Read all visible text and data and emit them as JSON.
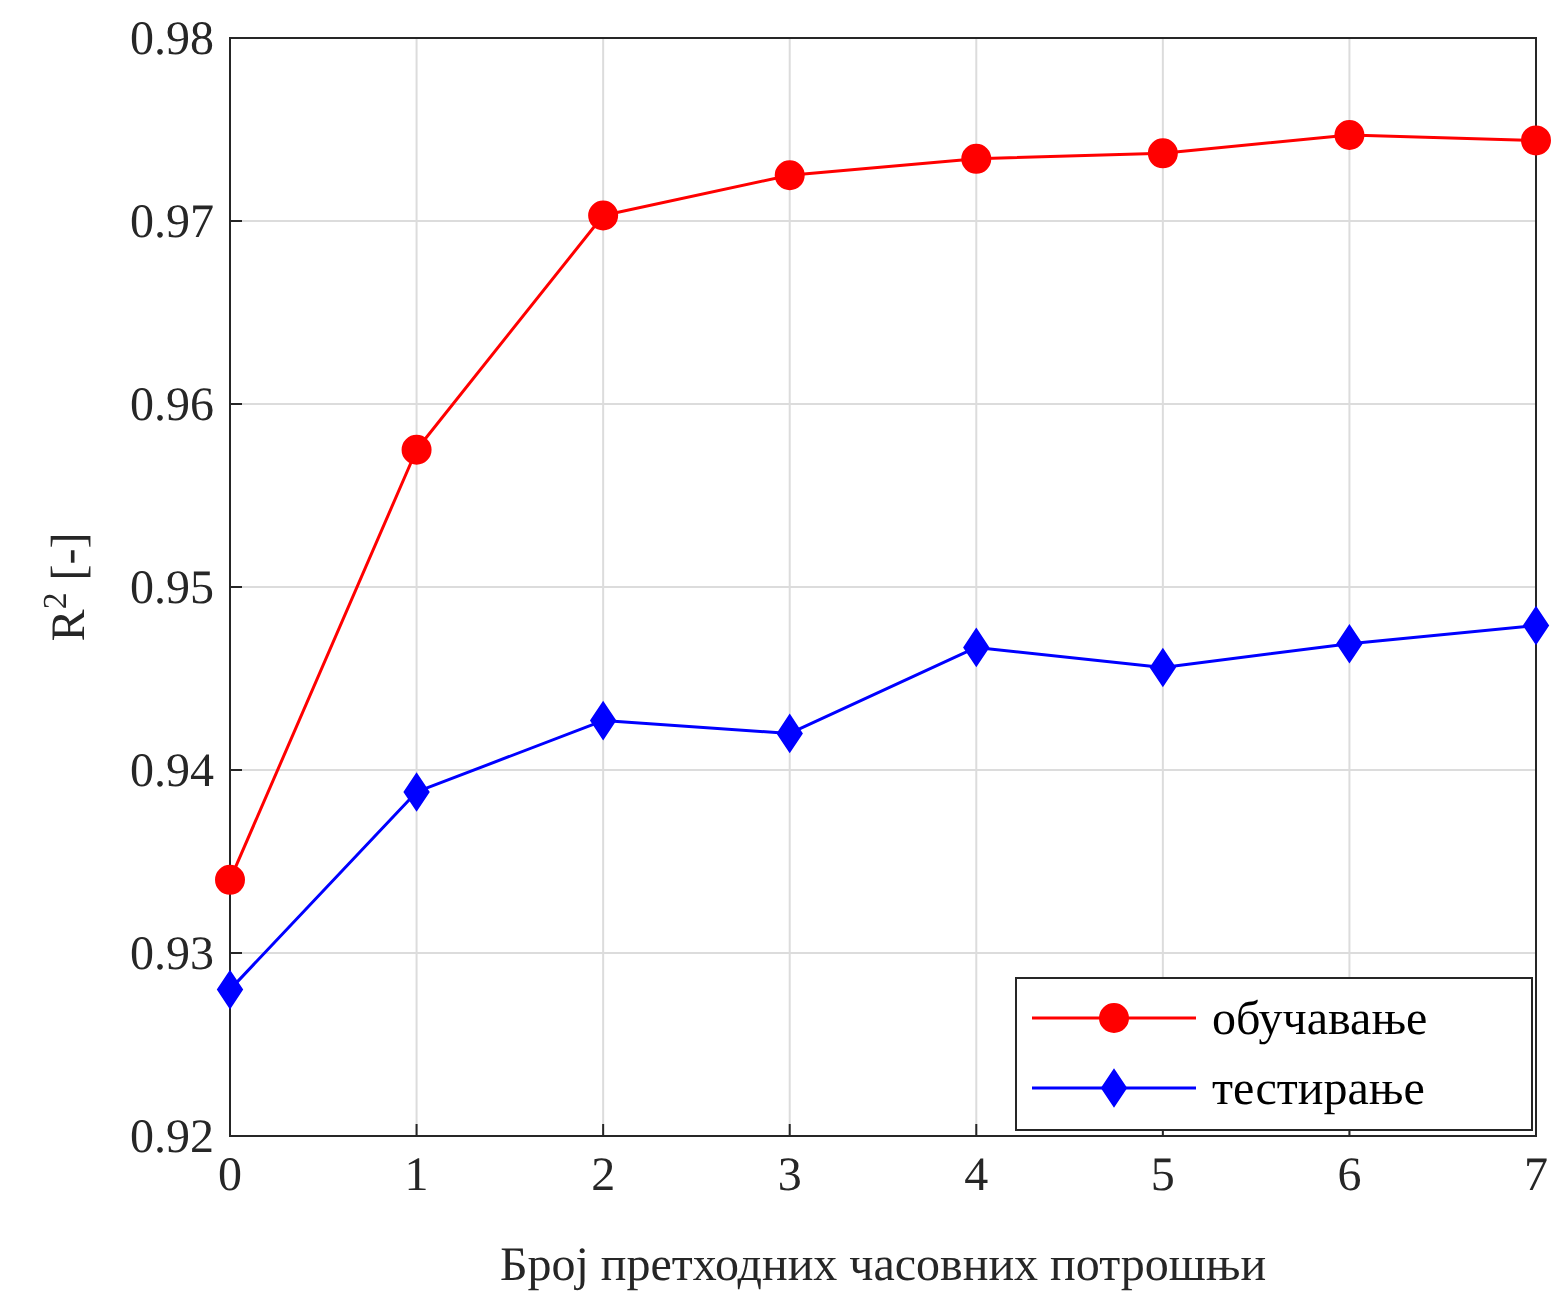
{
  "chart_data": {
    "type": "line",
    "xlabel": "Број претходних часовних потрошњи",
    "ylabel": "R$^{2}$ [-]",
    "x": [
      0,
      1,
      2,
      3,
      4,
      5,
      6,
      7
    ],
    "series": [
      {
        "name": "обучавање",
        "color": "#ff0000",
        "marker": "circle",
        "values": [
          0.934,
          0.9575,
          0.9703,
          0.9725,
          0.9734,
          0.9737,
          0.9747,
          0.9744
        ]
      },
      {
        "name": "тестирање",
        "color": "#0000ff",
        "marker": "diamond",
        "values": [
          0.928,
          0.9388,
          0.9427,
          0.942,
          0.9467,
          0.9456,
          0.9469,
          0.9479
        ]
      }
    ],
    "xlim": [
      0,
      7
    ],
    "xticks": [
      0,
      1,
      2,
      3,
      4,
      5,
      6,
      7
    ],
    "ylim": [
      0.92,
      0.98
    ],
    "yticks": [
      0.92,
      0.93,
      0.94,
      0.95,
      0.96,
      0.97,
      0.98
    ],
    "grid": true,
    "legend": "bottom right",
    "line_style": "solid"
  }
}
